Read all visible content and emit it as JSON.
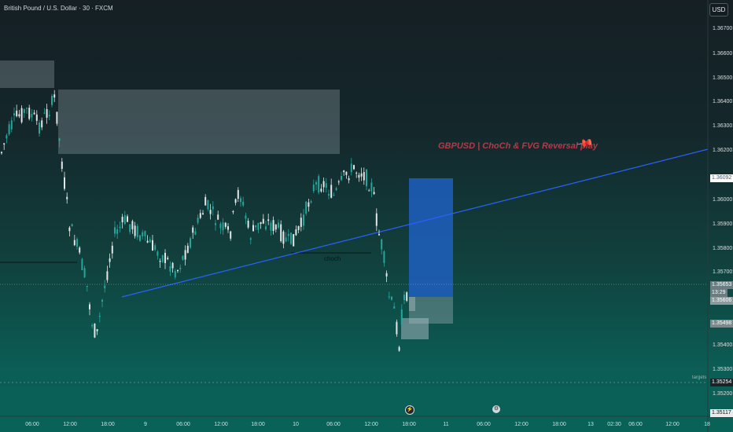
{
  "symbol": {
    "title": "British Pound / U.S. Dollar · 30 · FXCM"
  },
  "currency_label": "USD",
  "annotations": {
    "idea_text": "GBPUSD | ChoCh & FVG Reversal play",
    "choch_label": "choch",
    "targets_label": "targets"
  },
  "price_axis": {
    "ticks": [
      "1.36700",
      "1.36600",
      "1.36500",
      "1.36400",
      "1.36300",
      "1.36200",
      "1.36000",
      "1.35900",
      "1.35800",
      "1.35700",
      "1.35400",
      "1.35300",
      "1.35200"
    ]
  },
  "time_axis": {
    "ticks": [
      "06:00",
      "12:00",
      "18:00",
      "9",
      "06:00",
      "12:00",
      "18:00",
      "10",
      "06:00",
      "12:00",
      "18:00",
      "11",
      "06:00",
      "12:00",
      "18:00",
      "13",
      "02:30",
      "06:00",
      "12:00",
      "18"
    ]
  },
  "price_badges": [
    {
      "text": "1.36092",
      "bg": "#ffffff",
      "fg": "#1f5fbf"
    },
    {
      "text": "1.35653",
      "bg": "#6b7d80",
      "fg": "#ffffff"
    },
    {
      "text": "13:29",
      "bg": "#6b7d80",
      "fg": "#ffffff"
    },
    {
      "text": "1.35606",
      "bg": "#8d9a9c",
      "fg": "#ffffff"
    },
    {
      "text": "1.35498",
      "bg": "#7d8a8c",
      "fg": "#ffffff"
    },
    {
      "text": "1.35254",
      "bg": "#1b2326",
      "fg": "#ffffff"
    },
    {
      "text": "1.35117",
      "bg": "#e8ecec",
      "fg": "#111111"
    }
  ],
  "colors": {
    "bull": "#26a69a",
    "bear": "#e3e6e6",
    "trendline": "#2962ff",
    "target_zone": "#1f5fbf",
    "supply_zone": "#b0bec5"
  },
  "events": [
    {
      "icon": "lightning-icon"
    },
    {
      "icon": "economic-event-icon"
    }
  ]
}
